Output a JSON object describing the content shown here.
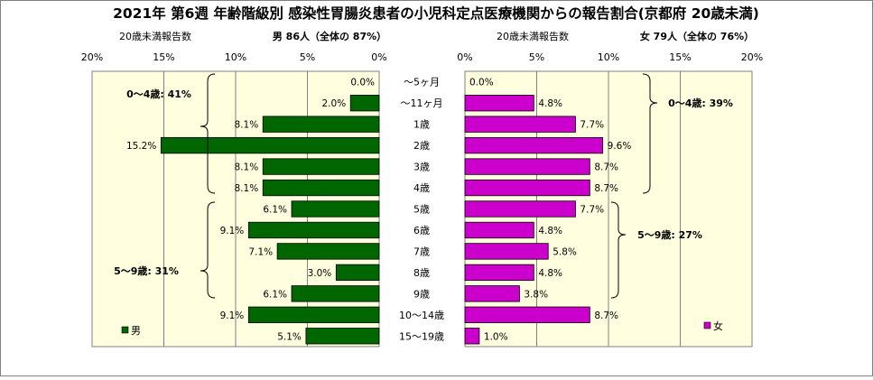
{
  "title": "2021年 第6週 年齢階級別 感染性胃腸炎患者の小児科定点医療機関からの報告割合(京都府 20歳未満)",
  "age_labels": [
    "～5ヶ月",
    "～11ヶ月",
    "1歳",
    "2歳",
    "3歳",
    "4歳",
    "5歳",
    "6歳",
    "7歳",
    "8歳",
    "9歳",
    "10～14歳",
    "15～19歳"
  ],
  "left_panel": {
    "header_left": "20歳未満報告数",
    "header_right": "男  86人（全体の  87%）",
    "legend": "男",
    "color": "#006600",
    "brace_0_4": "0～4歳: 41%",
    "brace_5_9": "5～9歳: 31%"
  },
  "right_panel": {
    "header_left": "20歳未満報告数",
    "header_right": "女  79人（全体の  76%）",
    "legend": "女",
    "color": "#cc00cc",
    "brace_0_4": "0～4歳: 39%",
    "brace_5_9": "5～9歳: 27%"
  },
  "chart_data": {
    "type": "bar",
    "orientation": "horizontal",
    "layout": "population-pyramid",
    "title": "2021年 第6週 年齢階級別 感染性胃腸炎患者の小児科定点医療機関からの報告割合(京都府 20歳未満)",
    "categories": [
      "～5ヶ月",
      "～11ヶ月",
      "1歳",
      "2歳",
      "3歳",
      "4歳",
      "5歳",
      "6歳",
      "7歳",
      "8歳",
      "9歳",
      "10～14歳",
      "15～19歳"
    ],
    "series": [
      {
        "name": "男",
        "color": "#006600",
        "values": [
          0.0,
          2.0,
          8.1,
          15.2,
          8.1,
          8.1,
          6.1,
          9.1,
          7.1,
          3.0,
          6.1,
          9.1,
          5.1
        ]
      },
      {
        "name": "女",
        "color": "#cc00cc",
        "values": [
          0.0,
          4.8,
          7.7,
          9.6,
          8.7,
          8.7,
          7.7,
          4.8,
          5.8,
          4.8,
          3.8,
          8.7,
          1.0
        ]
      }
    ],
    "value_labels": {
      "男": [
        "0.0%",
        "2.0%",
        "8.1%",
        "15.2%",
        "8.1%",
        "8.1%",
        "6.1%",
        "9.1%",
        "7.1%",
        "3.0%",
        "6.1%",
        "9.1%",
        "5.1%"
      ],
      "女": [
        "0.0%",
        "4.8%",
        "7.7%",
        "9.6%",
        "8.7%",
        "8.7%",
        "7.7%",
        "4.8%",
        "5.8%",
        "4.8%",
        "3.8%",
        "8.7%",
        "1.0%"
      ]
    },
    "xlim": [
      0,
      20
    ],
    "xticks": [
      "0%",
      "5%",
      "10%",
      "15%",
      "20%"
    ],
    "grid": true,
    "plot_background": "#ffffe0"
  }
}
